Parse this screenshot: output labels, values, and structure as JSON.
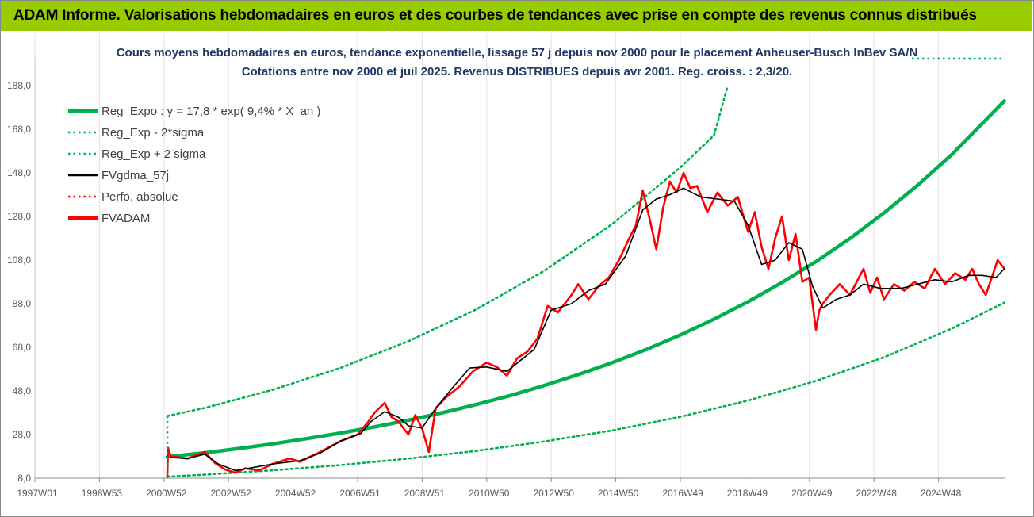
{
  "banner": {
    "title": "ADAM Informe. Valorisations hebdomadaires en euros et des courbes de tendances avec prise en compte des revenus connus distribués",
    "color": "#99cc00"
  },
  "chart_data": {
    "type": "line",
    "title": "Cours moyens hebdomadaires en euros, tendance exponentielle, lissage 57 j depuis nov 2000 pour le placement Anheuser-Busch InBev SA/N",
    "subtitle": "Cotations entre nov 2000 et juil 2025. Revenus DISTRIBUES depuis avr 2001. Reg. croiss. : 2,3/20.",
    "xlabel": "",
    "ylabel": "",
    "ylim": [
      8,
      198
    ],
    "xlim": [
      1997.0,
      2025.58
    ],
    "y_ticks": [
      "8,0",
      "28,0",
      "48,0",
      "68,0",
      "88,0",
      "108,0",
      "128,0",
      "148,0",
      "168,0",
      "188,0"
    ],
    "x_ticks": [
      "1997W01",
      "1998W53",
      "2000W52",
      "2002W52",
      "2004W52",
      "2006W51",
      "2008W51",
      "2010W50",
      "2012W50",
      "2014W50",
      "2016W49",
      "2018W49",
      "2020W49",
      "2022W48",
      "2024W48"
    ],
    "grid": "vertical",
    "legend_position": "top-left",
    "series": [
      {
        "name": "Reg_Expo : y = 17,8 * exp( 9,4% *  X_an )",
        "color": "#00b050",
        "style": "solid",
        "x": [
          2000.9,
          2002,
          2003,
          2004,
          2005,
          2006,
          2007,
          2008,
          2009,
          2010,
          2011,
          2012,
          2013,
          2014,
          2015,
          2016,
          2017,
          2018,
          2019,
          2020,
          2021,
          2022,
          2023,
          2024,
          2025.55
        ],
        "y": [
          17.8,
          19.6,
          21.6,
          23.7,
          26.1,
          28.7,
          31.5,
          34.6,
          38.0,
          41.8,
          45.9,
          50.5,
          55.5,
          61.0,
          67.0,
          73.6,
          80.9,
          88.9,
          97.7,
          107.3,
          117.9,
          129.6,
          142.4,
          156.4,
          181.0
        ]
      },
      {
        "name": "Reg_Exp - 2*sigma",
        "color": "#00b050",
        "style": "dotted",
        "x": [
          2000.9,
          2002,
          2004,
          2006,
          2008,
          2010,
          2012,
          2014,
          2016,
          2018,
          2020,
          2022,
          2024,
          2025.55
        ],
        "y": [
          8.7,
          9.6,
          11.6,
          14.0,
          17.0,
          20.5,
          24.8,
          29.9,
          36.1,
          43.6,
          52.6,
          63.4,
          76.6,
          88.5
        ]
      },
      {
        "name": "Reg_Exp + 2 sigma",
        "color": "#00b050",
        "style": "dotted",
        "x": [
          2000.9,
          2002,
          2004,
          2006,
          2008,
          2010,
          2012,
          2014,
          2016,
          2017,
          2017.4
        ],
        "y": [
          36.5,
          40.2,
          48.5,
          58.6,
          70.8,
          85.4,
          103.1,
          124.5,
          150.4,
          165.2,
          188.0
        ]
      },
      {
        "name": "FVgdma_57j",
        "color": "#000000",
        "style": "solid",
        "x": [
          2001.0,
          2001.5,
          2002.0,
          2002.4,
          2002.9,
          2003.3,
          2004.0,
          2004.8,
          2005.4,
          2006.0,
          2006.6,
          2006.9,
          2007.3,
          2007.7,
          2008.0,
          2008.4,
          2008.8,
          2009.3,
          2009.8,
          2010.3,
          2010.9,
          2011.3,
          2011.7,
          2012.2,
          2012.8,
          2013.3,
          2013.8,
          2014.4,
          2014.9,
          2015.3,
          2015.7,
          2016.1,
          2016.6,
          2017.1,
          2017.6,
          2018.0,
          2018.4,
          2018.8,
          2019.2,
          2019.6,
          2019.9,
          2020.2,
          2020.6,
          2021.0,
          2021.4,
          2021.9,
          2022.5,
          2023.0,
          2023.5,
          2024.0,
          2024.5,
          2024.9,
          2025.3,
          2025.55
        ],
        "y": [
          17.5,
          17.0,
          19.0,
          14.5,
          11.5,
          12.5,
          14.5,
          16.0,
          19.5,
          25.0,
          28.5,
          34.0,
          38.5,
          36.0,
          32.0,
          31.0,
          40.0,
          49.5,
          58.5,
          59.0,
          57.0,
          62.0,
          67.0,
          85.0,
          88.0,
          94.0,
          97.0,
          110.0,
          131.0,
          136.0,
          138.0,
          141.0,
          137.0,
          136.0,
          135.0,
          124.0,
          106.0,
          108.0,
          116.0,
          113.0,
          96.0,
          86.0,
          90.0,
          92.0,
          97.0,
          95.0,
          95.0,
          97.0,
          99.0,
          98.0,
          101.0,
          101.0,
          100.0,
          104.0
        ]
      },
      {
        "name": "Perfo. absolue",
        "color": "#ff0000",
        "style": "dotted",
        "x": [],
        "y": []
      },
      {
        "name": "FVADAM",
        "color": "#ff0000",
        "style": "solid",
        "x": [
          2000.9,
          2000.92,
          2001.0,
          2001.5,
          2002.0,
          2002.3,
          2002.6,
          2002.9,
          2003.2,
          2003.6,
          2004.0,
          2004.5,
          2004.8,
          2005.4,
          2006.0,
          2006.5,
          2006.8,
          2007.0,
          2007.3,
          2007.5,
          2007.7,
          2008.0,
          2008.2,
          2008.4,
          2008.6,
          2008.8,
          2009.1,
          2009.5,
          2009.9,
          2010.3,
          2010.6,
          2010.9,
          2011.2,
          2011.5,
          2011.8,
          2012.1,
          2012.4,
          2012.8,
          2013.0,
          2013.3,
          2013.6,
          2013.9,
          2014.2,
          2014.5,
          2014.7,
          2014.9,
          2015.1,
          2015.3,
          2015.5,
          2015.7,
          2015.9,
          2016.1,
          2016.3,
          2016.5,
          2016.8,
          2017.1,
          2017.4,
          2017.7,
          2018.0,
          2018.2,
          2018.4,
          2018.6,
          2018.8,
          2019.0,
          2019.2,
          2019.4,
          2019.6,
          2019.8,
          2020.0,
          2020.1,
          2020.2,
          2020.4,
          2020.7,
          2021.0,
          2021.2,
          2021.4,
          2021.6,
          2021.8,
          2022.0,
          2022.3,
          2022.6,
          2022.9,
          2023.2,
          2023.5,
          2023.8,
          2024.1,
          2024.4,
          2024.6,
          2024.8,
          2025.0,
          2025.2,
          2025.35,
          2025.55
        ],
        "y": [
          8.5,
          22.0,
          18.0,
          17.0,
          20.0,
          15.0,
          12.0,
          10.5,
          12.5,
          11.5,
          14.5,
          17.0,
          15.5,
          20.0,
          25.0,
          28.0,
          33.5,
          38.0,
          42.5,
          36.0,
          34.0,
          28.0,
          37.0,
          31.0,
          20.0,
          40.0,
          45.0,
          50.0,
          57.0,
          61.0,
          59.0,
          55.0,
          63.0,
          66.0,
          72.0,
          87.0,
          84.0,
          92.0,
          97.0,
          90.0,
          96.0,
          100.0,
          108.0,
          118.0,
          124.0,
          140.0,
          127.0,
          113.0,
          132.0,
          144.0,
          139.0,
          148.0,
          141.0,
          142.0,
          130.0,
          139.0,
          133.0,
          137.0,
          121.0,
          130.0,
          114.0,
          104.0,
          118.0,
          128.0,
          108.0,
          120.0,
          98.0,
          100.0,
          76.0,
          85.0,
          88.0,
          92.0,
          97.0,
          92.0,
          98.0,
          104.0,
          93.0,
          100.0,
          90.0,
          97.0,
          94.0,
          98.0,
          95.0,
          104.0,
          97.0,
          102.0,
          99.0,
          104.0,
          97.0,
          92.0,
          101.0,
          108.0,
          104.0
        ]
      }
    ]
  }
}
